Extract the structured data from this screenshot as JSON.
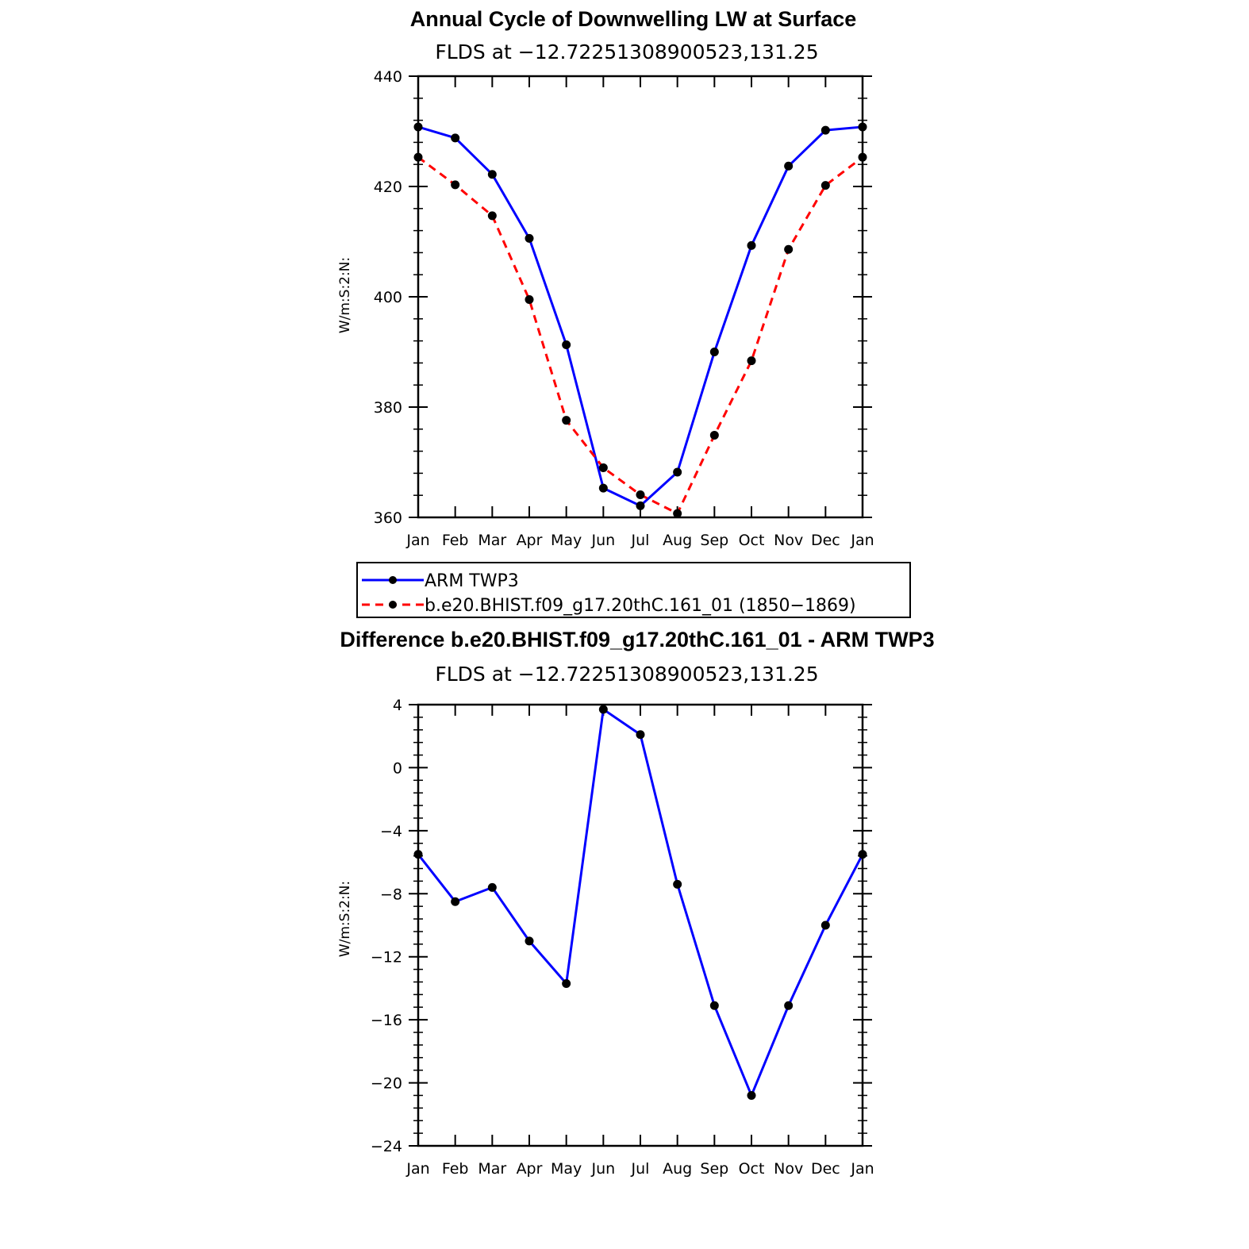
{
  "chart_data": [
    {
      "type": "line",
      "title": "Annual Cycle of Downwelling LW at Surface",
      "subtitle": "FLDS at −12.72251308900523,131.25",
      "ylabel": "W/m:S:2:N:",
      "xlabel": "",
      "categories": [
        "Jan",
        "Feb",
        "Mar",
        "Apr",
        "May",
        "Jun",
        "Jul",
        "Aug",
        "Sep",
        "Oct",
        "Nov",
        "Dec",
        "Jan"
      ],
      "ylim": [
        360,
        440
      ],
      "yticks": [
        "360",
        "380",
        "400",
        "420",
        "440"
      ],
      "series": [
        {
          "name": "ARM TWP3",
          "color": "#0000ff",
          "dashed": false,
          "values": [
            430.8,
            428.8,
            422.2,
            410.6,
            391.3,
            365.3,
            362.1,
            368.2,
            390.0,
            409.3,
            423.7,
            430.2,
            430.8
          ]
        },
        {
          "name": "b.e20.BHIST.f09_g17.20thC.161_01 (1850−1869)",
          "color": "#ff0000",
          "dashed": true,
          "values": [
            425.3,
            420.3,
            414.7,
            399.5,
            377.6,
            369.0,
            364.1,
            360.7,
            374.9,
            388.4,
            408.6,
            420.2,
            425.3
          ]
        }
      ],
      "legend": "bottom"
    },
    {
      "type": "line",
      "title": "Difference b.e20.BHIST.f09_g17.20thC.161_01 - ARM TWP3",
      "subtitle": "FLDS at −12.72251308900523,131.25",
      "ylabel": "W/m:S:2:N:",
      "xlabel": "",
      "categories": [
        "Jan",
        "Feb",
        "Mar",
        "Apr",
        "May",
        "Jun",
        "Jul",
        "Aug",
        "Sep",
        "Oct",
        "Nov",
        "Dec",
        "Jan"
      ],
      "ylim": [
        -24,
        4
      ],
      "yticks": [
        "−24",
        "−20",
        "−16",
        "−12",
        "−8",
        "−4",
        "0",
        "4"
      ],
      "series": [
        {
          "color": "#0000ff",
          "dashed": false,
          "values": [
            -5.5,
            -8.5,
            -7.6,
            -11.0,
            -13.7,
            3.7,
            2.1,
            -7.4,
            -15.1,
            -20.8,
            -15.1,
            -10.0,
            -5.5
          ]
        }
      ]
    }
  ]
}
